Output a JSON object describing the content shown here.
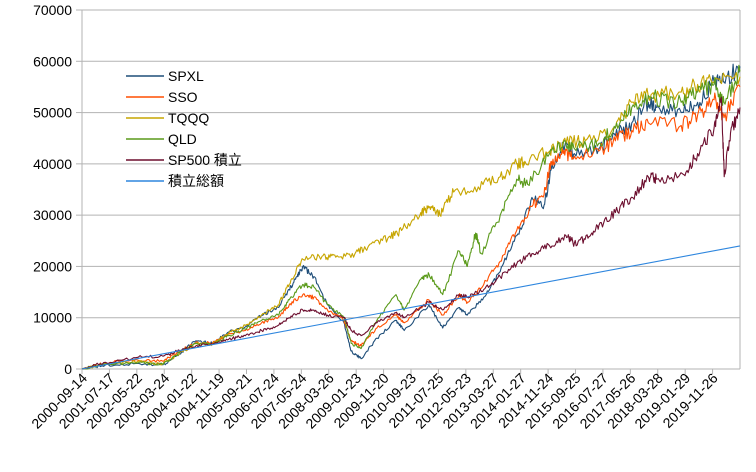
{
  "chart_data": {
    "type": "line",
    "title": "",
    "xlabel": "",
    "ylabel": "",
    "ylim": [
      0,
      70000
    ],
    "yticks": [
      0,
      10000,
      20000,
      30000,
      40000,
      50000,
      60000,
      70000
    ],
    "x_range": [
      "2000-09-14",
      "2020-09-14"
    ],
    "x_tick_labels": [
      "2000-09-14",
      "2001-07-17",
      "2002-05-22",
      "2003-03-24",
      "2004-01-22",
      "2004-11-19",
      "2005-09-21",
      "2006-07-24",
      "2007-05-24",
      "2008-03-26",
      "2009-01-23",
      "2009-11-20",
      "2010-09-23",
      "2011-07-25",
      "2012-05-23",
      "2013-03-27",
      "2014-01-27",
      "2014-11-24",
      "2015-09-25",
      "2016-07-27",
      "2017-05-26",
      "2018-03-28",
      "2019-01-29",
      "2019-11-26"
    ],
    "grid": "horizontal",
    "legend_position": "top-left",
    "series": [
      {
        "name": "SPXL",
        "color": "#1f4e79",
        "values": [
          [
            "2000-09-14",
            0
          ],
          [
            "2001-06-01",
            800
          ],
          [
            "2002-06-01",
            1100
          ],
          [
            "2003-03-01",
            800
          ],
          [
            "2003-09-01",
            3000
          ],
          [
            "2004-03-01",
            5500
          ],
          [
            "2004-09-01",
            5000
          ],
          [
            "2005-03-01",
            7200
          ],
          [
            "2005-09-01",
            8200
          ],
          [
            "2006-03-01",
            10500
          ],
          [
            "2006-09-01",
            12000
          ],
          [
            "2007-01-01",
            15500
          ],
          [
            "2007-04-01",
            18000
          ],
          [
            "2007-06-01",
            20000
          ],
          [
            "2007-10-01",
            18000
          ],
          [
            "2008-03-01",
            12500
          ],
          [
            "2008-09-01",
            9000
          ],
          [
            "2008-11-20",
            3500
          ],
          [
            "2009-03-09",
            2000
          ],
          [
            "2009-09-01",
            6000
          ],
          [
            "2010-04-01",
            9500
          ],
          [
            "2010-07-01",
            7500
          ],
          [
            "2011-04-01",
            12500
          ],
          [
            "2011-09-01",
            8000
          ],
          [
            "2012-03-01",
            12000
          ],
          [
            "2012-06-01",
            10500
          ],
          [
            "2012-12-01",
            14000
          ],
          [
            "2013-06-01",
            19000
          ],
          [
            "2013-12-01",
            26000
          ],
          [
            "2014-06-01",
            33000
          ],
          [
            "2014-10-01",
            32000
          ],
          [
            "2014-12-20",
            39000
          ],
          [
            "2015-05-01",
            43500
          ],
          [
            "2015-09-01",
            42000
          ],
          [
            "2016-06-01",
            43000
          ],
          [
            "2016-12-01",
            45500
          ],
          [
            "2017-06-01",
            48000
          ],
          [
            "2017-12-01",
            52000
          ],
          [
            "2018-03-01",
            51000
          ],
          [
            "2018-12-01",
            50000
          ],
          [
            "2019-06-01",
            52000
          ],
          [
            "2019-12-01",
            56000
          ],
          [
            "2020-03-20",
            56000
          ],
          [
            "2020-09-14",
            59000
          ]
        ]
      },
      {
        "name": "SSO",
        "color": "#ff4f00",
        "values": [
          [
            "2000-09-14",
            0
          ],
          [
            "2001-06-01",
            1200
          ],
          [
            "2002-06-01",
            1700
          ],
          [
            "2003-03-01",
            1500
          ],
          [
            "2003-09-01",
            3500
          ],
          [
            "2004-03-01",
            5200
          ],
          [
            "2004-09-01",
            5000
          ],
          [
            "2005-03-01",
            6800
          ],
          [
            "2005-09-01",
            7500
          ],
          [
            "2006-03-01",
            9000
          ],
          [
            "2006-09-01",
            10000
          ],
          [
            "2007-01-01",
            12500
          ],
          [
            "2007-06-01",
            14500
          ],
          [
            "2007-10-01",
            14000
          ],
          [
            "2008-03-01",
            11500
          ],
          [
            "2008-09-01",
            9500
          ],
          [
            "2008-11-20",
            5500
          ],
          [
            "2009-03-09",
            4500
          ],
          [
            "2009-09-01",
            8000
          ],
          [
            "2010-04-01",
            10500
          ],
          [
            "2010-07-01",
            9000
          ],
          [
            "2011-04-01",
            13500
          ],
          [
            "2011-09-01",
            10500
          ],
          [
            "2012-03-01",
            14500
          ],
          [
            "2012-06-01",
            13000
          ],
          [
            "2012-12-01",
            16500
          ],
          [
            "2013-06-01",
            21000
          ],
          [
            "2013-12-01",
            27000
          ],
          [
            "2014-06-01",
            32000
          ],
          [
            "2014-10-01",
            34000
          ],
          [
            "2014-12-20",
            40500
          ],
          [
            "2015-05-01",
            42000
          ],
          [
            "2015-09-01",
            41500
          ],
          [
            "2016-06-01",
            42500
          ],
          [
            "2016-12-01",
            44500
          ],
          [
            "2017-06-01",
            46500
          ],
          [
            "2017-12-01",
            48000
          ],
          [
            "2018-12-01",
            47500
          ],
          [
            "2019-06-01",
            49500
          ],
          [
            "2019-12-01",
            52500
          ],
          [
            "2020-03-20",
            49000
          ],
          [
            "2020-09-14",
            55000
          ]
        ]
      },
      {
        "name": "TQQQ",
        "color": "#c7a500",
        "values": [
          [
            "2000-09-14",
            0
          ],
          [
            "2001-06-01",
            1100
          ],
          [
            "2002-06-01",
            1500
          ],
          [
            "2003-03-01",
            1000
          ],
          [
            "2003-09-01",
            3000
          ],
          [
            "2004-03-01",
            5000
          ],
          [
            "2004-09-01",
            4800
          ],
          [
            "2005-03-01",
            7000
          ],
          [
            "2005-09-01",
            8500
          ],
          [
            "2006-03-01",
            10500
          ],
          [
            "2006-09-01",
            12500
          ],
          [
            "2007-01-01",
            16500
          ],
          [
            "2007-05-24",
            21500
          ],
          [
            "2008-01-01",
            22000
          ],
          [
            "2008-06-01",
            21800
          ],
          [
            "2009-01-01",
            22500
          ],
          [
            "2009-06-01",
            24000
          ],
          [
            "2010-01-01",
            25500
          ],
          [
            "2010-06-01",
            27000
          ],
          [
            "2011-01-01",
            30500
          ],
          [
            "2011-04-01",
            31500
          ],
          [
            "2011-08-01",
            30000
          ],
          [
            "2012-01-01",
            34500
          ],
          [
            "2012-10-01",
            35500
          ],
          [
            "2013-06-01",
            37500
          ],
          [
            "2013-12-01",
            40000
          ],
          [
            "2014-03-01",
            40500
          ],
          [
            "2014-12-01",
            42500
          ],
          [
            "2015-06-01",
            44000
          ],
          [
            "2016-01-01",
            44500
          ],
          [
            "2016-12-01",
            47000
          ],
          [
            "2017-06-01",
            52000
          ],
          [
            "2018-01-01",
            53500
          ],
          [
            "2018-12-01",
            54000
          ],
          [
            "2019-06-01",
            55500
          ],
          [
            "2019-12-01",
            56000
          ],
          [
            "2020-09-14",
            57000
          ]
        ]
      },
      {
        "name": "QLD",
        "color": "#5a9a1a",
        "values": [
          [
            "2000-09-14",
            0
          ],
          [
            "2001-06-01",
            1000
          ],
          [
            "2002-06-01",
            1200
          ],
          [
            "2003-03-01",
            900
          ],
          [
            "2003-09-01",
            3200
          ],
          [
            "2004-03-01",
            5000
          ],
          [
            "2004-09-01",
            4800
          ],
          [
            "2005-03-01",
            6500
          ],
          [
            "2005-09-01",
            7800
          ],
          [
            "2006-03-01",
            9500
          ],
          [
            "2006-09-01",
            10500
          ],
          [
            "2007-01-01",
            13500
          ],
          [
            "2007-06-01",
            16500
          ],
          [
            "2007-10-01",
            16000
          ],
          [
            "2008-03-01",
            12500
          ],
          [
            "2008-09-01",
            10000
          ],
          [
            "2008-11-20",
            5000
          ],
          [
            "2009-03-09",
            4000
          ],
          [
            "2009-09-01",
            9500
          ],
          [
            "2010-04-01",
            14500
          ],
          [
            "2010-07-01",
            11500
          ],
          [
            "2011-01-01",
            17500
          ],
          [
            "2011-04-01",
            18500
          ],
          [
            "2011-09-01",
            14500
          ],
          [
            "2012-03-01",
            23000
          ],
          [
            "2012-06-01",
            20000
          ],
          [
            "2012-09-01",
            26500
          ],
          [
            "2012-11-01",
            22500
          ],
          [
            "2013-06-01",
            30000
          ],
          [
            "2013-12-01",
            37000
          ],
          [
            "2014-04-01",
            36000
          ],
          [
            "2014-12-01",
            42000
          ],
          [
            "2015-06-01",
            44000
          ],
          [
            "2015-09-01",
            43000
          ],
          [
            "2016-06-01",
            44000
          ],
          [
            "2016-12-01",
            47000
          ],
          [
            "2017-06-01",
            51000
          ],
          [
            "2018-01-01",
            53000
          ],
          [
            "2018-12-01",
            52000
          ],
          [
            "2019-06-01",
            54000
          ],
          [
            "2019-12-01",
            55500
          ],
          [
            "2020-03-20",
            52000
          ],
          [
            "2020-09-14",
            58000
          ]
        ]
      },
      {
        "name": "SP500 積立",
        "color": "#6d0f2f",
        "values": [
          [
            "2000-09-14",
            0
          ],
          [
            "2001-06-01",
            1300
          ],
          [
            "2002-06-01",
            2300
          ],
          [
            "2003-03-01",
            2500
          ],
          [
            "2003-09-01",
            3600
          ],
          [
            "2004-03-01",
            4500
          ],
          [
            "2004-09-01",
            4800
          ],
          [
            "2005-03-01",
            5800
          ],
          [
            "2005-09-01",
            6500
          ],
          [
            "2006-03-01",
            7500
          ],
          [
            "2006-09-01",
            8500
          ],
          [
            "2007-01-01",
            10000
          ],
          [
            "2007-06-01",
            11500
          ],
          [
            "2007-10-01",
            11500
          ],
          [
            "2008-03-01",
            10500
          ],
          [
            "2008-09-01",
            10000
          ],
          [
            "2008-11-20",
            7500
          ],
          [
            "2009-03-09",
            6500
          ],
          [
            "2009-09-01",
            9000
          ],
          [
            "2010-04-01",
            11000
          ],
          [
            "2010-07-01",
            10000
          ],
          [
            "2011-04-01",
            13000
          ],
          [
            "2011-09-01",
            11500
          ],
          [
            "2012-03-01",
            14500
          ],
          [
            "2012-06-01",
            14000
          ],
          [
            "2012-12-01",
            15500
          ],
          [
            "2013-06-01",
            18000
          ],
          [
            "2013-12-01",
            20500
          ],
          [
            "2014-06-01",
            22500
          ],
          [
            "2014-12-01",
            24000
          ],
          [
            "2015-06-01",
            26000
          ],
          [
            "2015-09-01",
            24500
          ],
          [
            "2016-02-01",
            25500
          ],
          [
            "2016-06-01",
            28000
          ],
          [
            "2016-12-01",
            30500
          ],
          [
            "2017-06-01",
            33500
          ],
          [
            "2017-12-01",
            37500
          ],
          [
            "2018-03-01",
            37000
          ],
          [
            "2018-12-20",
            38000
          ],
          [
            "2019-06-01",
            42000
          ],
          [
            "2019-12-01",
            47000
          ],
          [
            "2020-02-19",
            53000
          ],
          [
            "2020-03-23",
            37500
          ],
          [
            "2020-06-01",
            46000
          ],
          [
            "2020-09-14",
            51000
          ]
        ]
      },
      {
        "name": "積立総額",
        "color": "#2e86de",
        "values": [
          [
            "2000-09-14",
            0
          ],
          [
            "2020-09-14",
            24000
          ]
        ]
      }
    ]
  }
}
